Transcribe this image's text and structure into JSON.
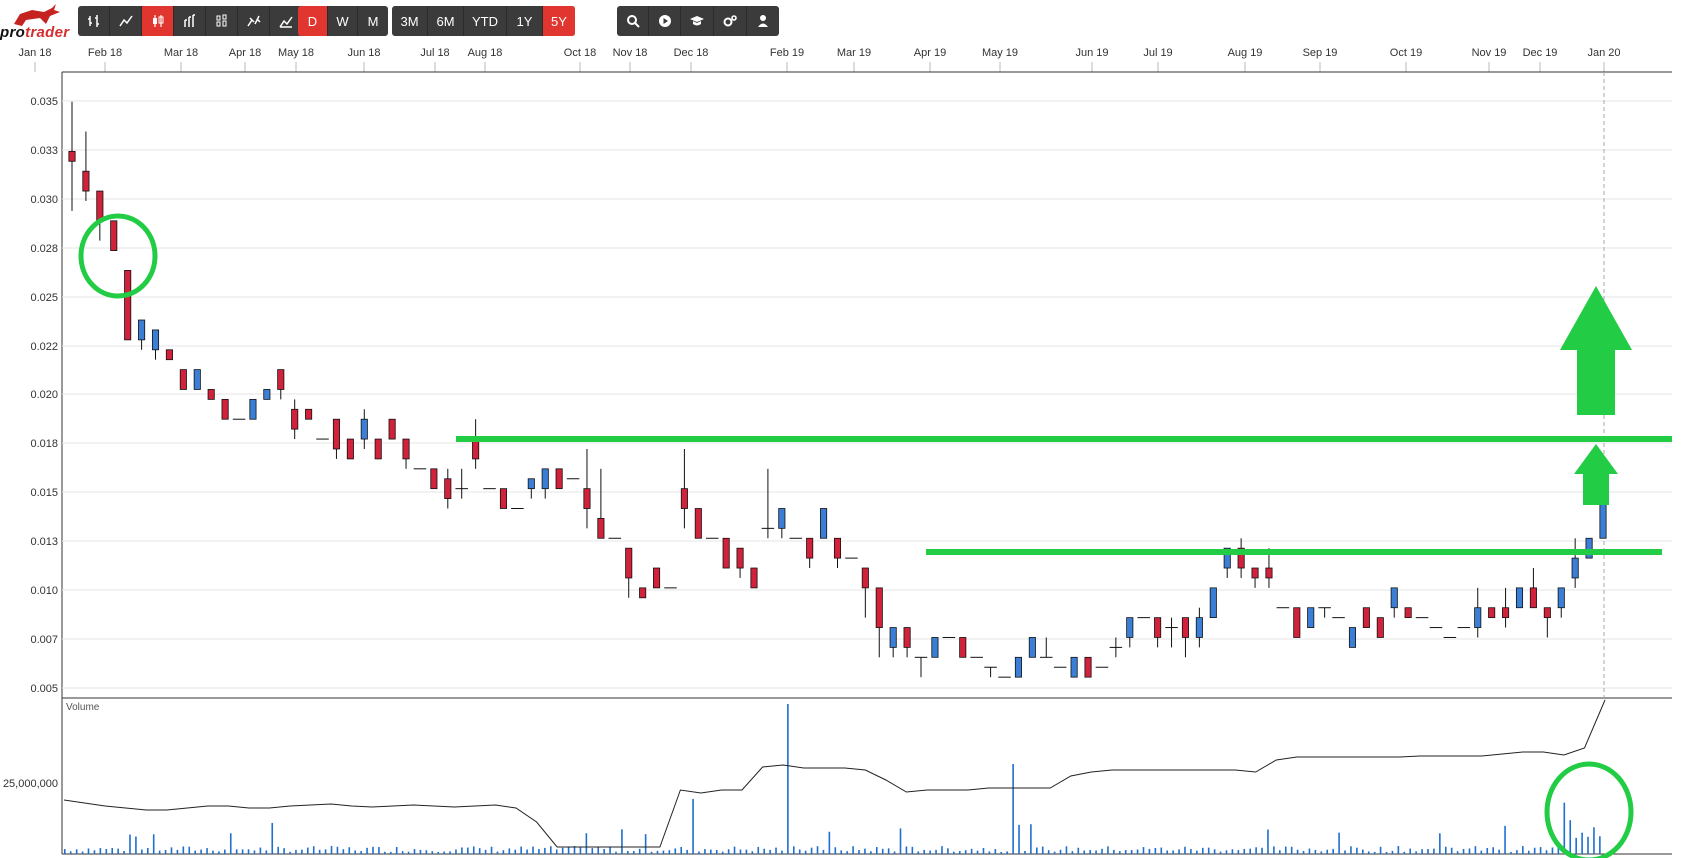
{
  "app": {
    "logo_text_a": "pro",
    "logo_text_b": "trader"
  },
  "toolbar": {
    "chart_type_buttons": [
      {
        "name": "ohlc-bars-icon"
      },
      {
        "name": "line-chart-icon"
      },
      {
        "name": "candlestick-icon",
        "active": true
      },
      {
        "name": "hlc-bars-icon"
      },
      {
        "name": "heikin-ashi-icon"
      },
      {
        "name": "point-figure-icon"
      },
      {
        "name": "mountain-chart-icon"
      }
    ],
    "periodicity": [
      {
        "label": "D",
        "active": true
      },
      {
        "label": "W",
        "active": false
      },
      {
        "label": "M",
        "active": false
      }
    ],
    "ranges": [
      {
        "label": "3M",
        "active": false
      },
      {
        "label": "6M",
        "active": false
      },
      {
        "label": "YTD",
        "active": false
      },
      {
        "label": "1Y",
        "active": false
      },
      {
        "label": "5Y",
        "active": true
      }
    ],
    "tools": [
      {
        "name": "search-icon"
      },
      {
        "name": "play-icon"
      },
      {
        "name": "education-cap-icon"
      },
      {
        "name": "settings-gears-icon"
      },
      {
        "name": "user-icon"
      }
    ]
  },
  "colors": {
    "up": "#3a7fd5",
    "down": "#d1213b",
    "annotation": "#22cc44",
    "volume_bar": "#1e6fd0",
    "toolbar_bg": "#3b3b3b",
    "active": "#e0362f"
  },
  "time_axis": [
    "Jan 18",
    "Feb 18",
    "Mar 18",
    "Apr 18",
    "May 18",
    "Jun 18",
    "Jul 18",
    "Aug 18",
    "Oct 18",
    "Nov 18",
    "Dec 18",
    "Feb 19",
    "Mar 19",
    "Apr 19",
    "May 19",
    "Jun 19",
    "Jul 19",
    "Aug 19",
    "Sep 19",
    "Oct 19",
    "Nov 19",
    "Dec 19",
    "Jan 20"
  ],
  "chart_data": {
    "type": "candlestick",
    "price_axis": {
      "ticks": [
        "0.035",
        "0.033",
        "0.030",
        "0.028",
        "0.025",
        "0.022",
        "0.020",
        "0.018",
        "0.015",
        "0.013",
        "0.010",
        "0.007",
        "0.005"
      ],
      "range": [
        0.0045,
        0.036
      ]
    },
    "price_series": [
      [
        0.032,
        0.0315,
        0.0345,
        0.029
      ],
      [
        0.031,
        0.03,
        0.033,
        0.0295
      ],
      [
        0.03,
        0.0285,
        0.03,
        0.0275
      ],
      [
        0.0285,
        0.027,
        0.0285,
        0.027
      ],
      [
        0.026,
        0.0225,
        0.026,
        0.0225
      ],
      [
        0.0225,
        0.0235,
        0.0235,
        0.022
      ],
      [
        0.022,
        0.023,
        0.023,
        0.0215
      ],
      [
        0.022,
        0.0215,
        0.022,
        0.0215
      ],
      [
        0.021,
        0.02,
        0.021,
        0.02
      ],
      [
        0.02,
        0.021,
        0.021,
        0.02
      ],
      [
        0.02,
        0.0195,
        0.02,
        0.0195
      ],
      [
        0.0195,
        0.0185,
        0.0195,
        0.0185
      ],
      [
        0.0185,
        0.0185,
        0.0185,
        0.0185
      ],
      [
        0.0185,
        0.0195,
        0.0195,
        0.0185
      ],
      [
        0.0195,
        0.02,
        0.02,
        0.0195
      ],
      [
        0.021,
        0.02,
        0.021,
        0.0195
      ],
      [
        0.019,
        0.018,
        0.0195,
        0.0175
      ],
      [
        0.019,
        0.0185,
        0.019,
        0.0185
      ],
      [
        0.0175,
        0.0175,
        0.0175,
        0.0175
      ],
      [
        0.0185,
        0.017,
        0.0185,
        0.0165
      ],
      [
        0.0175,
        0.0165,
        0.0175,
        0.0165
      ],
      [
        0.0175,
        0.0185,
        0.019,
        0.017
      ],
      [
        0.0175,
        0.0165,
        0.0175,
        0.0165
      ],
      [
        0.0185,
        0.0175,
        0.0185,
        0.0175
      ],
      [
        0.0175,
        0.0165,
        0.0175,
        0.016
      ],
      [
        0.016,
        0.016,
        0.016,
        0.016
      ],
      [
        0.016,
        0.015,
        0.016,
        0.015
      ],
      [
        0.0155,
        0.0145,
        0.016,
        0.014
      ],
      [
        0.015,
        0.015,
        0.016,
        0.0145
      ],
      [
        0.0175,
        0.0165,
        0.0185,
        0.016
      ],
      [
        0.015,
        0.015,
        0.015,
        0.015
      ],
      [
        0.015,
        0.014,
        0.015,
        0.014
      ],
      [
        0.014,
        0.014,
        0.014,
        0.014
      ],
      [
        0.015,
        0.0155,
        0.0155,
        0.0145
      ],
      [
        0.015,
        0.016,
        0.016,
        0.0145
      ],
      [
        0.016,
        0.015,
        0.016,
        0.015
      ],
      [
        0.0155,
        0.0155,
        0.0155,
        0.0155
      ],
      [
        0.015,
        0.014,
        0.017,
        0.013
      ],
      [
        0.0135,
        0.0125,
        0.016,
        0.0125
      ],
      [
        0.0125,
        0.0125,
        0.0125,
        0.0125
      ],
      [
        0.012,
        0.0105,
        0.012,
        0.0095
      ],
      [
        0.01,
        0.0095,
        0.01,
        0.0095
      ],
      [
        0.011,
        0.01,
        0.011,
        0.01
      ],
      [
        0.01,
        0.01,
        0.01,
        0.01
      ],
      [
        0.015,
        0.014,
        0.017,
        0.013
      ],
      [
        0.014,
        0.0125,
        0.014,
        0.0125
      ],
      [
        0.0125,
        0.0125,
        0.0125,
        0.0125
      ],
      [
        0.0125,
        0.011,
        0.0125,
        0.011
      ],
      [
        0.012,
        0.011,
        0.012,
        0.0105
      ],
      [
        0.011,
        0.01,
        0.011,
        0.01
      ],
      [
        0.013,
        0.013,
        0.016,
        0.0125
      ],
      [
        0.013,
        0.014,
        0.014,
        0.0125
      ],
      [
        0.0125,
        0.0125,
        0.0125,
        0.0125
      ],
      [
        0.0125,
        0.0115,
        0.0125,
        0.011
      ],
      [
        0.0125,
        0.014,
        0.014,
        0.0125
      ],
      [
        0.0125,
        0.0115,
        0.0125,
        0.011
      ],
      [
        0.0115,
        0.0115,
        0.0115,
        0.0115
      ],
      [
        0.011,
        0.01,
        0.011,
        0.0085
      ],
      [
        0.01,
        0.008,
        0.01,
        0.0065
      ],
      [
        0.007,
        0.008,
        0.008,
        0.0065
      ],
      [
        0.008,
        0.007,
        0.008,
        0.0065
      ],
      [
        0.0065,
        0.0065,
        0.0065,
        0.0055
      ],
      [
        0.0065,
        0.0075,
        0.0075,
        0.0065
      ],
      [
        0.0075,
        0.0075,
        0.0075,
        0.0075
      ],
      [
        0.0075,
        0.0065,
        0.0075,
        0.0065
      ],
      [
        0.0065,
        0.0065,
        0.0065,
        0.0065
      ],
      [
        0.006,
        0.006,
        0.006,
        0.0055
      ],
      [
        0.0055,
        0.0055,
        0.0055,
        0.0055
      ],
      [
        0.0055,
        0.0065,
        0.0065,
        0.0055
      ],
      [
        0.0065,
        0.0075,
        0.0075,
        0.0065
      ],
      [
        0.0065,
        0.0065,
        0.0075,
        0.0065
      ],
      [
        0.006,
        0.006,
        0.006,
        0.006
      ],
      [
        0.0055,
        0.0065,
        0.0065,
        0.0055
      ],
      [
        0.0065,
        0.0055,
        0.0065,
        0.0055
      ],
      [
        0.006,
        0.006,
        0.006,
        0.006
      ],
      [
        0.007,
        0.007,
        0.0075,
        0.0065
      ],
      [
        0.0075,
        0.0085,
        0.0085,
        0.007
      ],
      [
        0.0085,
        0.0085,
        0.0085,
        0.0085
      ],
      [
        0.0085,
        0.0075,
        0.0085,
        0.007
      ],
      [
        0.008,
        0.008,
        0.0085,
        0.007
      ],
      [
        0.0085,
        0.0075,
        0.0085,
        0.0065
      ],
      [
        0.0075,
        0.0085,
        0.009,
        0.007
      ],
      [
        0.0085,
        0.01,
        0.01,
        0.0085
      ],
      [
        0.011,
        0.012,
        0.012,
        0.0105
      ],
      [
        0.012,
        0.011,
        0.0125,
        0.0105
      ],
      [
        0.011,
        0.0105,
        0.011,
        0.01
      ],
      [
        0.011,
        0.0105,
        0.012,
        0.01
      ],
      [
        0.009,
        0.009,
        0.009,
        0.009
      ],
      [
        0.009,
        0.0075,
        0.009,
        0.0075
      ],
      [
        0.008,
        0.009,
        0.009,
        0.008
      ],
      [
        0.009,
        0.009,
        0.009,
        0.0085
      ],
      [
        0.0085,
        0.0085,
        0.0085,
        0.0085
      ],
      [
        0.007,
        0.008,
        0.008,
        0.007
      ],
      [
        0.009,
        0.008,
        0.009,
        0.008
      ],
      [
        0.0085,
        0.0075,
        0.0085,
        0.0075
      ],
      [
        0.009,
        0.01,
        0.01,
        0.0085
      ],
      [
        0.009,
        0.0085,
        0.009,
        0.0085
      ],
      [
        0.0085,
        0.0085,
        0.0085,
        0.0085
      ],
      [
        0.008,
        0.008,
        0.008,
        0.008
      ],
      [
        0.0075,
        0.0075,
        0.0075,
        0.0075
      ],
      [
        0.008,
        0.008,
        0.008,
        0.008
      ],
      [
        0.008,
        0.009,
        0.01,
        0.0075
      ],
      [
        0.009,
        0.0085,
        0.009,
        0.0085
      ],
      [
        0.009,
        0.0085,
        0.01,
        0.008
      ],
      [
        0.009,
        0.01,
        0.01,
        0.009
      ],
      [
        0.01,
        0.009,
        0.011,
        0.009
      ],
      [
        0.009,
        0.0085,
        0.009,
        0.0075
      ],
      [
        0.009,
        0.01,
        0.01,
        0.0085
      ],
      [
        0.0105,
        0.0115,
        0.0125,
        0.01
      ],
      [
        0.0115,
        0.0125,
        0.0125,
        0.0115
      ],
      [
        0.0125,
        0.0145,
        0.0145,
        0.0125
      ]
    ],
    "volume_panel": {
      "label": "Volume",
      "tick": "25,000,000"
    },
    "annotations": [
      {
        "type": "horizontal-line",
        "label": "",
        "y": 0.018
      },
      {
        "type": "horizontal-line",
        "label": "",
        "y": 0.0125
      },
      {
        "type": "arrow-up",
        "size": "large"
      },
      {
        "type": "arrow-up",
        "size": "small"
      },
      {
        "type": "circle",
        "where": "price-feb-18"
      },
      {
        "type": "circle",
        "where": "volume-jan-20"
      }
    ]
  }
}
